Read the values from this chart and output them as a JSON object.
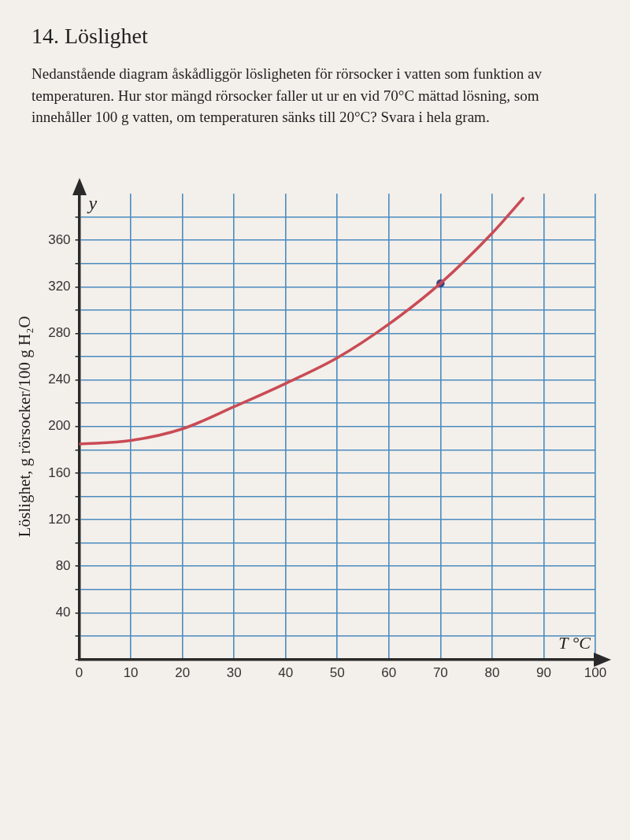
{
  "chart_data": {
    "type": "line",
    "title": "14. Löslighet",
    "subtitle": "Nedanstående diagram åskådliggör lösligheten för rörsocker i vatten som funktion av temperaturen. Hur stor mängd rörsocker faller ut ur en vid 70°C mättad lösning, som innehåller 100 g vatten, om temperaturen sänks till 20°C? Svara i hela gram.",
    "xlabel": "T °C",
    "ylabel": "Löslighet, g rörsocker/100 g H₂O",
    "annotations": [
      "y"
    ],
    "x": [
      0,
      10,
      20,
      30,
      40,
      50,
      60,
      70,
      80,
      86
    ],
    "series": [
      {
        "color": "#c94b55",
        "values": [
          185,
          188,
          198,
          217,
          237,
          259,
          288,
          323,
          366,
          396
        ]
      },
      {
        "type": "scatter",
        "x": [
          70
        ],
        "color": "#3d4380",
        "values": [
          323
        ],
        "marker": "circle"
      }
    ],
    "xlim": [
      0,
      100
    ],
    "xticks": [
      0,
      10,
      20,
      30,
      40,
      50,
      60,
      70,
      80,
      90,
      100
    ],
    "ylim": [
      0,
      400
    ],
    "yticks": [
      {
        "value": 0,
        "label": null
      },
      {
        "value": 20,
        "label": null
      },
      40,
      {
        "value": 60,
        "label": null
      },
      80,
      {
        "value": 100,
        "label": null
      },
      120,
      {
        "value": 140,
        "label": null
      },
      160,
      {
        "value": 180,
        "label": null
      },
      200,
      {
        "value": 220,
        "label": null
      },
      240,
      {
        "value": 260,
        "label": null
      },
      280,
      {
        "value": 300,
        "label": null
      },
      320,
      {
        "value": 340,
        "label": null
      },
      360,
      {
        "value": 380,
        "label": null
      }
    ],
    "grid": true,
    "marker": "none"
  }
}
